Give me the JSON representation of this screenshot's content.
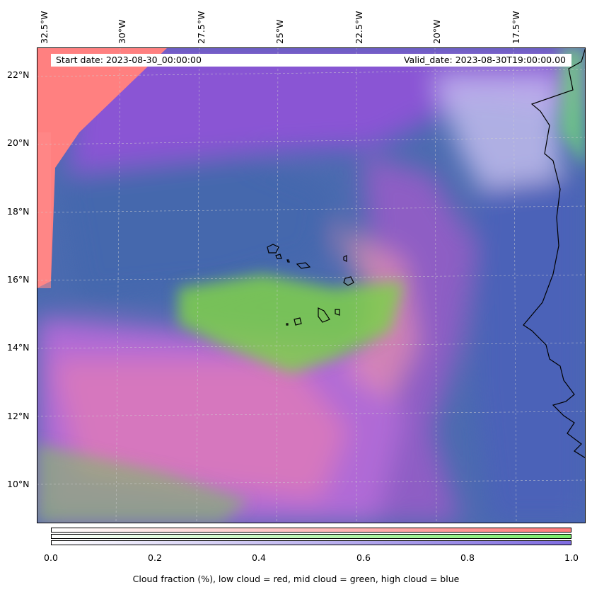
{
  "header": {
    "start_date": "Start date: 2023-08-30_00:00:00",
    "valid_date": "Valid_date: 2023-08-30T19:00:00.00"
  },
  "lon_labels": [
    "32.5°W",
    "30°W",
    "27.5°W",
    "25°W",
    "22.5°W",
    "20°W",
    "17.5°W"
  ],
  "lat_labels": [
    "22°N",
    "20°N",
    "18°N",
    "16°N",
    "14°N",
    "12°N",
    "10°N"
  ],
  "colorbar": {
    "ticks": [
      "0.0",
      "0.2",
      "0.4",
      "0.6",
      "0.8",
      "1.0"
    ],
    "label": "Cloud fraction (%), low cloud = red, mid cloud = green, high cloud = blue",
    "colors": {
      "low": "#ff7b7b",
      "mid": "#7bef6a",
      "high": "#7f6ce0"
    }
  },
  "map_colors": {
    "ocean_blue": "#4a6aae",
    "purple": "#8a54d2",
    "red": "#ff8080",
    "green": "#7fd04a",
    "coast": "#000000"
  }
}
